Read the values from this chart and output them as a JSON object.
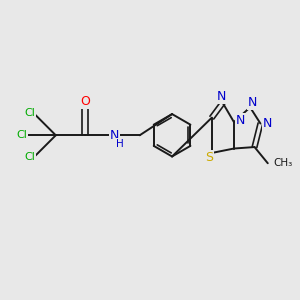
{
  "bg_color": "#e8e8e8",
  "bond_color": "#1a1a1a",
  "atom_colors": {
    "O": "#ff0000",
    "N": "#0000cc",
    "S": "#ccaa00",
    "Cl": "#00aa00",
    "C": "#1a1a1a"
  },
  "figsize": [
    3.0,
    3.0
  ],
  "dpi": 100
}
